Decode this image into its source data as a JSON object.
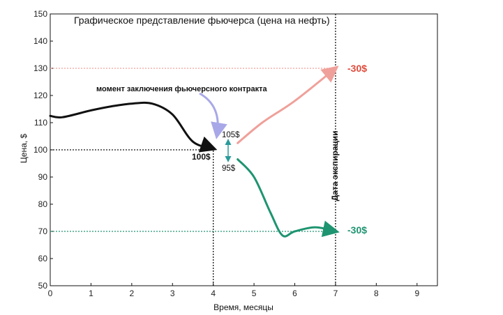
{
  "chart_data": {
    "type": "line",
    "title": "Графическое представление фьючерса (цена на нефть)",
    "xlabel": "Время, месяцы",
    "ylabel": "Цена, $",
    "xlim": [
      0,
      9.5
    ],
    "ylim": [
      50,
      150
    ],
    "xticks": [
      0,
      1,
      2,
      3,
      4,
      5,
      6,
      7,
      8,
      9
    ],
    "yticks": [
      50,
      60,
      70,
      80,
      90,
      100,
      110,
      120,
      130,
      140,
      150
    ],
    "grid": false,
    "series": [
      {
        "color": "#111111",
        "x": [
          0,
          0.3,
          1,
          1.5,
          2,
          2.5,
          3,
          3.5,
          4
        ],
        "y": [
          112.5,
          112,
          114.5,
          116,
          117,
          117,
          113,
          103,
          100.5
        ]
      },
      {
        "color": "#f0a09a",
        "x": [
          4.6,
          5.2,
          6,
          7
        ],
        "y": [
          102.5,
          110,
          118,
          130
        ]
      },
      {
        "color": "#1e9470",
        "x": [
          4.6,
          5,
          5.4,
          5.7,
          6,
          6.5,
          7
        ],
        "y": [
          96.5,
          90,
          77,
          68.5,
          70,
          71.5,
          70
        ]
      }
    ],
    "reference_lines": [
      {
        "orientation": "horizontal",
        "y": 130,
        "x_range": [
          0,
          7
        ],
        "color": "#f0a09a"
      },
      {
        "orientation": "horizontal",
        "y": 70,
        "x_range": [
          0,
          7
        ],
        "color": "#1e9470"
      },
      {
        "orientation": "horizontal",
        "y": 100,
        "x_range": [
          0,
          4
        ],
        "color": "#111111"
      },
      {
        "orientation": "vertical",
        "x": 4,
        "y_range": [
          50,
          100
        ],
        "color": "#111111"
      },
      {
        "orientation": "vertical",
        "x": 7,
        "y_range": [
          50,
          150
        ],
        "color": "#111111"
      }
    ],
    "annotations": {
      "contract_moment": "момент заключения фьючерсного контракта",
      "price_100": "100$",
      "price_105": "105$",
      "price_95": "95$",
      "loss_top": "-30$",
      "loss_bottom": "-30$",
      "expiry": "Дата экспирации"
    },
    "colors": {
      "axis": "#111111",
      "contract_arrow": "#a8a8e8",
      "spread_arrow": "#2a9a9a",
      "loss_top": "#e04a3a",
      "loss_bottom": "#1e9470"
    }
  }
}
